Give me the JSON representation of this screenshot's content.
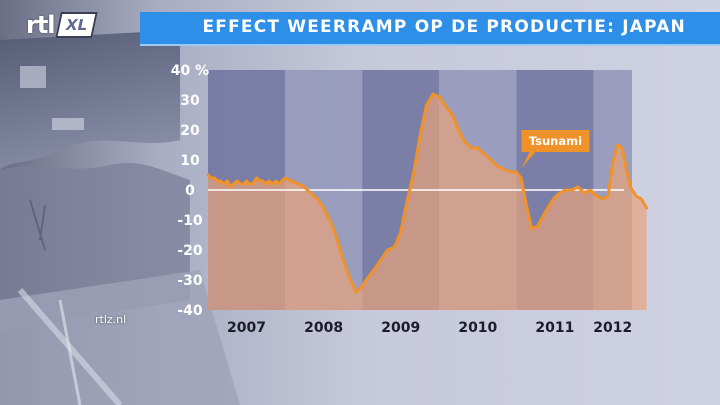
{
  "header": {
    "logo_text": "rtl",
    "logo_badge": "XL",
    "title": "EFFECT WEERRAMP OP DE PRODUCTIE: JAPAN"
  },
  "footer": {
    "watermark": "rtlz.nl"
  },
  "colors": {
    "title_bar": "#2d8fe8",
    "line": "#f0922a",
    "area_fill": "#e8a27c",
    "band_dark": "#7478a2",
    "band_light": "#9699bb",
    "zero_line": "#ffffff"
  },
  "chart_data": {
    "type": "area",
    "title": "EFFECT WEERRAMP OP DE PRODUCTIE: JAPAN",
    "xlabel": "",
    "ylabel": "",
    "ylim": [
      -40,
      40
    ],
    "yticks": [
      "40 %",
      "30",
      "20",
      "10",
      "0",
      "-10",
      "-20",
      "-30",
      "-40"
    ],
    "yticks_values": [
      40,
      30,
      20,
      10,
      0,
      -10,
      -20,
      -30,
      -40
    ],
    "categories": [
      "2007",
      "2008",
      "2009",
      "2010",
      "2011",
      "2012"
    ],
    "xlim": [
      2007.0,
      2012.5
    ],
    "grid": false,
    "zero_line": true,
    "series": [
      {
        "values": [
          [
            2007.0,
            5
          ],
          [
            2007.04,
            4
          ],
          [
            2007.08,
            4
          ],
          [
            2007.12,
            3
          ],
          [
            2007.16,
            3
          ],
          [
            2007.21,
            2
          ],
          [
            2007.25,
            3
          ],
          [
            2007.29,
            1
          ],
          [
            2007.33,
            2
          ],
          [
            2007.38,
            3
          ],
          [
            2007.42,
            2
          ],
          [
            2007.46,
            2
          ],
          [
            2007.5,
            3
          ],
          [
            2007.54,
            2
          ],
          [
            2007.58,
            2
          ],
          [
            2007.63,
            4
          ],
          [
            2007.67,
            3
          ],
          [
            2007.71,
            3
          ],
          [
            2007.75,
            2
          ],
          [
            2007.79,
            3
          ],
          [
            2007.83,
            2
          ],
          [
            2007.88,
            3
          ],
          [
            2007.92,
            2
          ],
          [
            2007.96,
            3
          ],
          [
            2008.0,
            4
          ],
          [
            2008.08,
            3
          ],
          [
            2008.17,
            2
          ],
          [
            2008.25,
            1
          ],
          [
            2008.33,
            -1
          ],
          [
            2008.42,
            -3
          ],
          [
            2008.5,
            -6
          ],
          [
            2008.58,
            -10
          ],
          [
            2008.67,
            -16
          ],
          [
            2008.75,
            -23
          ],
          [
            2008.83,
            -29
          ],
          [
            2008.92,
            -34
          ],
          [
            2009.0,
            -32
          ],
          [
            2009.08,
            -29
          ],
          [
            2009.17,
            -26
          ],
          [
            2009.25,
            -23
          ],
          [
            2009.33,
            -20
          ],
          [
            2009.42,
            -19
          ],
          [
            2009.5,
            -14
          ],
          [
            2009.58,
            -4
          ],
          [
            2009.67,
            6
          ],
          [
            2009.75,
            18
          ],
          [
            2009.83,
            28
          ],
          [
            2009.92,
            32
          ],
          [
            2010.0,
            31
          ],
          [
            2010.08,
            28
          ],
          [
            2010.17,
            25
          ],
          [
            2010.25,
            20
          ],
          [
            2010.33,
            16
          ],
          [
            2010.42,
            14
          ],
          [
            2010.5,
            14
          ],
          [
            2010.58,
            12
          ],
          [
            2010.67,
            10
          ],
          [
            2010.75,
            8
          ],
          [
            2010.83,
            7
          ],
          [
            2010.92,
            6
          ],
          [
            2011.0,
            6
          ],
          [
            2011.06,
            4
          ],
          [
            2011.13,
            -5
          ],
          [
            2011.2,
            -13
          ],
          [
            2011.28,
            -12
          ],
          [
            2011.38,
            -7
          ],
          [
            2011.48,
            -3
          ],
          [
            2011.56,
            -1
          ],
          [
            2011.64,
            0
          ],
          [
            2011.72,
            0
          ],
          [
            2011.8,
            1
          ],
          [
            2011.88,
            -1
          ],
          [
            2011.96,
            0
          ],
          [
            2012.04,
            -2
          ],
          [
            2012.12,
            -3
          ],
          [
            2012.19,
            -2
          ],
          [
            2012.25,
            9
          ],
          [
            2012.31,
            15
          ],
          [
            2012.37,
            14
          ],
          [
            2012.42,
            8
          ],
          [
            2012.48,
            1
          ],
          [
            2012.55,
            -2
          ],
          [
            2012.62,
            -3
          ],
          [
            2012.69,
            -6
          ]
        ]
      }
    ],
    "annotations": [
      {
        "text": "Tsunami",
        "x": 2011.04,
        "y": 6
      }
    ]
  }
}
